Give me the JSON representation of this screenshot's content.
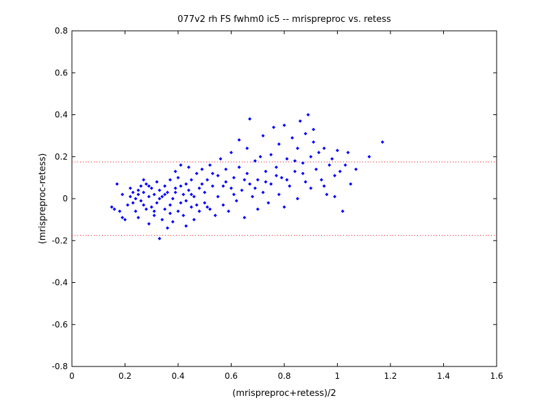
{
  "chart_data": {
    "type": "scatter",
    "title": "077v2 rh FS fwhm0 ic5 -- mrispreproc vs. retess",
    "xlabel": "(mrispreproc+retess)/2",
    "ylabel": "(mrispreproc-retess)",
    "xlim": [
      0,
      1.6
    ],
    "ylim": [
      -0.8,
      0.8
    ],
    "xticks": [
      0,
      0.2,
      0.4,
      0.6,
      0.8,
      1,
      1.2,
      1.4,
      1.6
    ],
    "yticks": [
      -0.8,
      -0.6,
      -0.4,
      -0.2,
      0,
      0.2,
      0.4,
      0.6,
      0.8
    ],
    "xtick_labels": [
      "0",
      "0.2",
      "0.4",
      "0.6",
      "0.8",
      "1",
      "1.2",
      "1.4",
      "1.6"
    ],
    "ytick_labels": [
      "-0.8",
      "-0.6",
      "-0.4",
      "-0.2",
      "0",
      "0.2",
      "0.4",
      "0.6",
      "0.8"
    ],
    "grid": false,
    "marker_color": "#0000ff",
    "reference_line_color": "#ff0000",
    "reference_lines": [
      0.175,
      -0.175
    ],
    "series": [
      {
        "points": [
          [
            0.15,
            -0.04
          ],
          [
            0.16,
            -0.05
          ],
          [
            0.17,
            0.07
          ],
          [
            0.18,
            -0.06
          ],
          [
            0.19,
            -0.09
          ],
          [
            0.2,
            -0.1
          ],
          [
            0.19,
            0.02
          ],
          [
            0.21,
            -0.03
          ],
          [
            0.22,
            0.01
          ],
          [
            0.22,
            0.05
          ],
          [
            0.23,
            -0.02
          ],
          [
            0.23,
            0.03
          ],
          [
            0.24,
            -0.06
          ],
          [
            0.24,
            0.0
          ],
          [
            0.25,
            0.02
          ],
          [
            0.25,
            -0.09
          ],
          [
            0.26,
            0.06
          ],
          [
            0.26,
            -0.01
          ],
          [
            0.27,
            0.09
          ],
          [
            0.27,
            0.03
          ],
          [
            0.28,
            -0.05
          ],
          [
            0.28,
            0.07
          ],
          [
            0.29,
            -0.12
          ],
          [
            0.29,
            0.01
          ],
          [
            0.3,
            0.05
          ],
          [
            0.3,
            -0.04
          ],
          [
            0.31,
            0.02
          ],
          [
            0.31,
            -0.08
          ],
          [
            0.32,
            0.08
          ],
          [
            0.32,
            -0.02
          ],
          [
            0.33,
            -0.19
          ],
          [
            0.33,
            0.04
          ],
          [
            0.34,
            -0.1
          ],
          [
            0.34,
            0.01
          ],
          [
            0.35,
            0.06
          ],
          [
            0.35,
            -0.05
          ],
          [
            0.36,
            0.03
          ],
          [
            0.36,
            -0.14
          ],
          [
            0.37,
            0.09
          ],
          [
            0.37,
            -0.03
          ],
          [
            0.38,
            0.0
          ],
          [
            0.38,
            -0.11
          ],
          [
            0.39,
            0.13
          ],
          [
            0.39,
            0.05
          ],
          [
            0.4,
            -0.06
          ],
          [
            0.4,
            0.1
          ],
          [
            0.41,
            -0.02
          ],
          [
            0.41,
            0.16
          ],
          [
            0.42,
            0.02
          ],
          [
            0.42,
            -0.08
          ],
          [
            0.43,
            0.07
          ],
          [
            0.43,
            -0.13
          ],
          [
            0.44,
            0.04
          ],
          [
            0.44,
            0.15
          ],
          [
            0.45,
            -0.04
          ],
          [
            0.45,
            0.09
          ],
          [
            0.46,
            0.01
          ],
          [
            0.46,
            -0.1
          ],
          [
            0.47,
            0.12
          ],
          [
            0.48,
            0.05
          ],
          [
            0.48,
            -0.06
          ],
          [
            0.49,
            0.14
          ],
          [
            0.5,
            0.03
          ],
          [
            0.5,
            -0.02
          ],
          [
            0.51,
            0.09
          ],
          [
            0.52,
            -0.05
          ],
          [
            0.52,
            0.16
          ],
          [
            0.53,
            0.06
          ],
          [
            0.54,
            -0.08
          ],
          [
            0.55,
            0.11
          ],
          [
            0.55,
            0.01
          ],
          [
            0.56,
            0.19
          ],
          [
            0.57,
            -0.03
          ],
          [
            0.58,
            0.08
          ],
          [
            0.58,
            0.14
          ],
          [
            0.59,
            -0.06
          ],
          [
            0.6,
            0.05
          ],
          [
            0.6,
            0.22
          ],
          [
            0.61,
            0.1
          ],
          [
            0.62,
            -0.01
          ],
          [
            0.63,
            0.15
          ],
          [
            0.63,
            0.28
          ],
          [
            0.64,
            0.04
          ],
          [
            0.65,
            -0.09
          ],
          [
            0.66,
            0.12
          ],
          [
            0.66,
            0.24
          ],
          [
            0.67,
            0.07
          ],
          [
            0.67,
            0.38
          ],
          [
            0.68,
            0.01
          ],
          [
            0.69,
            0.18
          ],
          [
            0.7,
            0.09
          ],
          [
            0.7,
            -0.05
          ],
          [
            0.71,
            0.2
          ],
          [
            0.72,
            0.03
          ],
          [
            0.72,
            0.3
          ],
          [
            0.73,
            0.13
          ],
          [
            0.74,
            -0.02
          ],
          [
            0.75,
            0.21
          ],
          [
            0.75,
            0.07
          ],
          [
            0.76,
            0.34
          ],
          [
            0.77,
            0.15
          ],
          [
            0.78,
            0.02
          ],
          [
            0.78,
            0.26
          ],
          [
            0.79,
            0.1
          ],
          [
            0.8,
            0.35
          ],
          [
            0.8,
            -0.04
          ],
          [
            0.81,
            0.19
          ],
          [
            0.82,
            0.06
          ],
          [
            0.83,
            0.29
          ],
          [
            0.84,
            0.13
          ],
          [
            0.85,
            0.24
          ],
          [
            0.85,
            0.0
          ],
          [
            0.86,
            0.37
          ],
          [
            0.87,
            0.17
          ],
          [
            0.88,
            0.08
          ],
          [
            0.88,
            0.31
          ],
          [
            0.89,
            0.4
          ],
          [
            0.9,
            0.2
          ],
          [
            0.9,
            0.05
          ],
          [
            0.91,
            0.27
          ],
          [
            0.92,
            0.14
          ],
          [
            0.93,
            0.22
          ],
          [
            0.94,
            0.09
          ],
          [
            0.95,
            0.24
          ],
          [
            0.96,
            0.02
          ],
          [
            0.97,
            0.16
          ],
          [
            0.98,
            0.19
          ],
          [
            0.99,
            0.11
          ],
          [
            1.0,
            0.23
          ],
          [
            1.01,
            0.13
          ],
          [
            1.02,
            -0.06
          ],
          [
            1.03,
            0.16
          ],
          [
            1.05,
            0.07
          ],
          [
            1.07,
            0.14
          ],
          [
            1.12,
            0.2
          ],
          [
            1.17,
            0.27
          ],
          [
            0.25,
            0.04
          ],
          [
            0.27,
            -0.03
          ],
          [
            0.29,
            0.06
          ],
          [
            0.31,
            -0.06
          ],
          [
            0.33,
            0.0
          ],
          [
            0.35,
            0.02
          ],
          [
            0.37,
            -0.07
          ],
          [
            0.39,
            0.03
          ],
          [
            0.41,
            0.06
          ],
          [
            0.43,
            -0.01
          ],
          [
            0.45,
            0.02
          ],
          [
            0.47,
            -0.03
          ],
          [
            0.49,
            0.07
          ],
          [
            0.51,
            -0.04
          ],
          [
            0.53,
            0.12
          ],
          [
            0.57,
            0.06
          ],
          [
            0.61,
            0.02
          ],
          [
            0.65,
            0.09
          ],
          [
            0.69,
            0.05
          ],
          [
            0.73,
            0.08
          ],
          [
            0.77,
            0.11
          ],
          [
            0.81,
            0.09
          ],
          [
            0.84,
            0.18
          ],
          [
            0.87,
            0.12
          ],
          [
            0.91,
            0.33
          ],
          [
            0.95,
            0.06
          ],
          [
            0.99,
            0.01
          ],
          [
            1.04,
            0.22
          ]
        ]
      }
    ]
  }
}
